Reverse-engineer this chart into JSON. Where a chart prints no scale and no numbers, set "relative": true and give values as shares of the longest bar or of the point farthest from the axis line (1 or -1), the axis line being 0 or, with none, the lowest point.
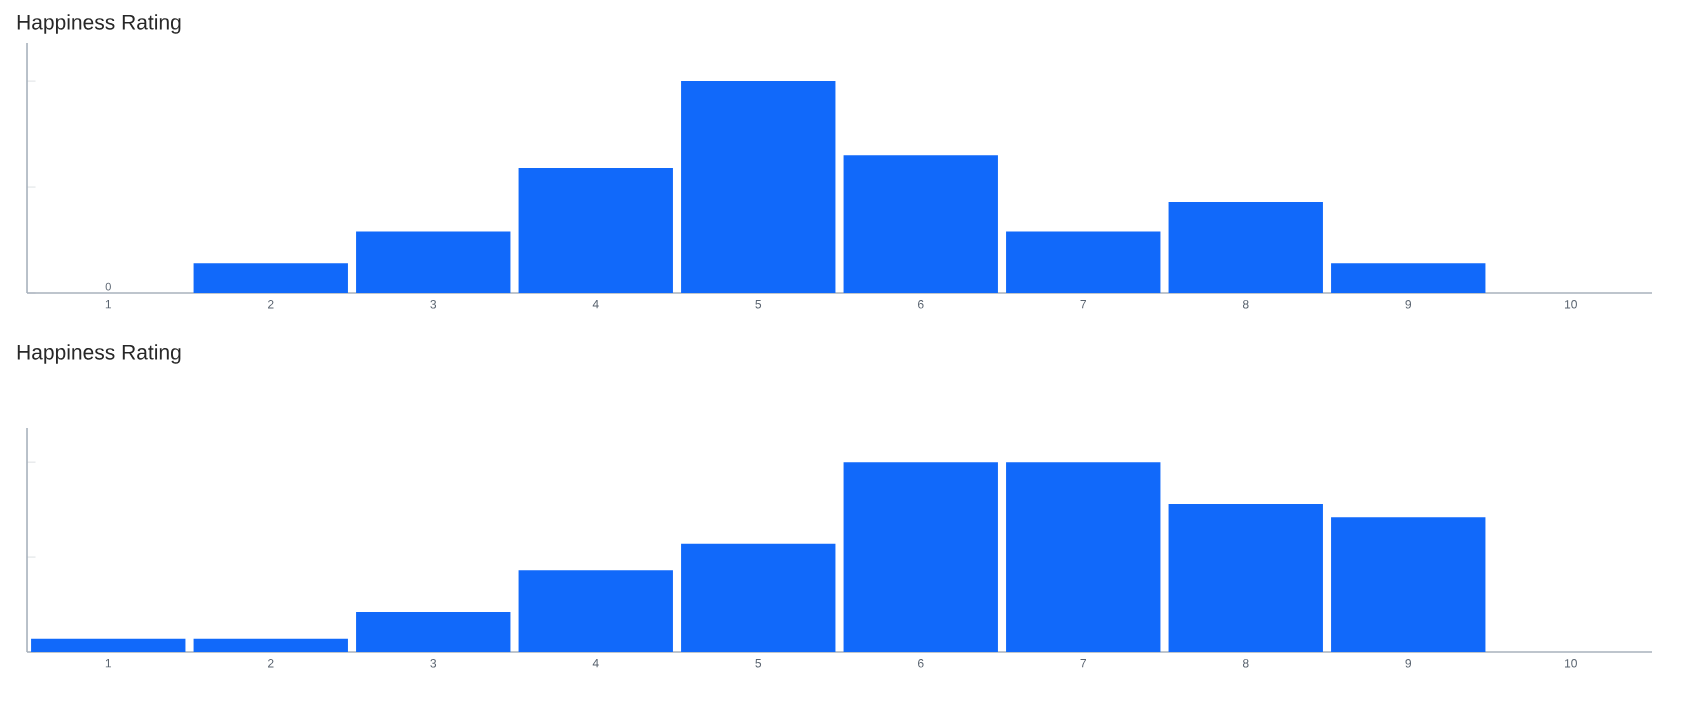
{
  "chart_data": [
    {
      "type": "bar",
      "title": "Happiness Rating",
      "relative": true,
      "color": "#1169fa",
      "categories": [
        "1",
        "2",
        "3",
        "4",
        "5",
        "6",
        "7",
        "8",
        "9",
        "10"
      ],
      "values": [
        0,
        0.14,
        0.29,
        0.59,
        1,
        0.65,
        0.29,
        0.43,
        0.14,
        0
      ],
      "annotations": [
        {
          "text": "0",
          "x": "1",
          "y": 0
        }
      ]
    },
    {
      "type": "bar",
      "title": "Happiness Rating",
      "relative": true,
      "color": "#1169fa",
      "categories": [
        "1",
        "2",
        "3",
        "4",
        "5",
        "6",
        "7",
        "8",
        "9",
        "10"
      ],
      "values": [
        0.07,
        0.07,
        0.21,
        0.43,
        0.57,
        1,
        1,
        0.78,
        0.71,
        0
      ]
    }
  ]
}
